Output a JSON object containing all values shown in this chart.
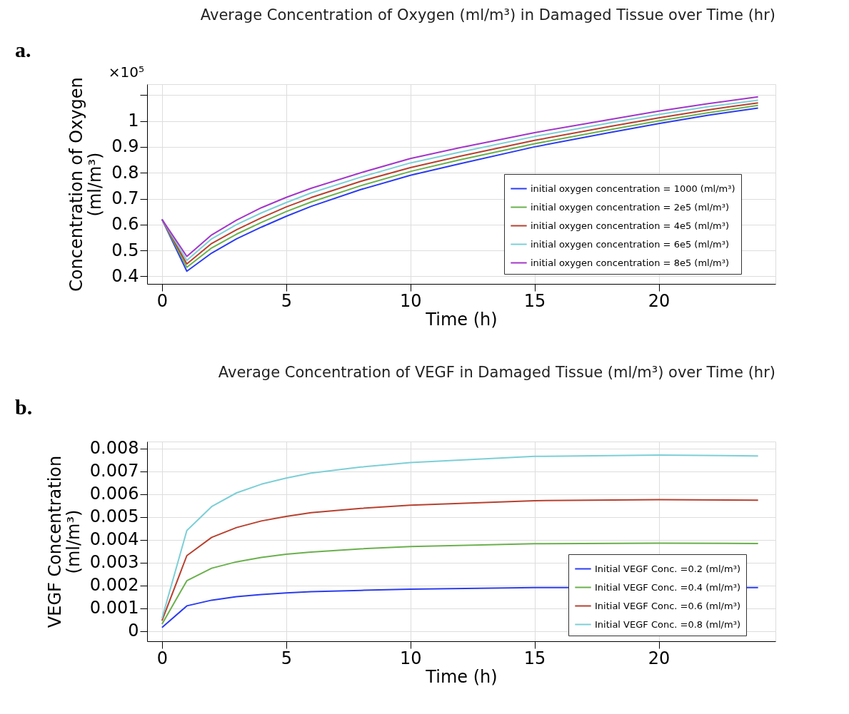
{
  "chart_data": [
    {
      "type": "line",
      "title": "Average Concentration of Oxygen (ml/m³) in Damaged Tissue over Time (hr)",
      "xlabel": "Time (h)",
      "ylabel": "Concentration of Oxygen\n(ml/m³)",
      "annotations": [
        "a.",
        "×10⁵"
      ],
      "x": [
        0,
        1,
        2,
        3,
        4,
        5,
        6,
        8,
        10,
        12,
        15,
        18,
        20,
        22,
        24
      ],
      "xlim": [
        -0.6,
        24.7
      ],
      "xticks": [
        0,
        5,
        10,
        15,
        20
      ],
      "ylim": [
        0.371,
        1.142
      ],
      "yticks": [
        0.4,
        0.5,
        0.6,
        0.7,
        0.8,
        0.9,
        1,
        {
          "value": 1.1,
          "label": null
        }
      ],
      "grid": true,
      "legend": "right",
      "series": [
        {
          "name": "initial oxygen concentration = 1000 (ml/m³)",
          "color": "#2b3cf0",
          "values": [
            0.62,
            0.42,
            0.49,
            0.545,
            0.59,
            0.632,
            0.67,
            0.735,
            0.79,
            0.835,
            0.9,
            0.955,
            0.99,
            1.022,
            1.05
          ]
        },
        {
          "name": "initial oxygen concentration = 2e5 (ml/m³)",
          "color": "#6ab04c",
          "values": [
            0.62,
            0.435,
            0.51,
            0.563,
            0.608,
            0.65,
            0.687,
            0.75,
            0.805,
            0.85,
            0.912,
            0.966,
            1.0,
            1.032,
            1.06
          ]
        },
        {
          "name": "initial oxygen concentration = 4e5 (ml/m³)",
          "color": "#b8402f",
          "values": [
            0.62,
            0.448,
            0.527,
            0.58,
            0.626,
            0.668,
            0.704,
            0.767,
            0.82,
            0.864,
            0.925,
            0.978,
            1.012,
            1.043,
            1.07
          ]
        },
        {
          "name": "initial oxygen concentration = 6e5 (ml/m³)",
          "color": "#7ccfd6",
          "values": [
            0.62,
            0.462,
            0.545,
            0.6,
            0.645,
            0.685,
            0.722,
            0.783,
            0.838,
            0.88,
            0.94,
            0.992,
            1.025,
            1.055,
            1.08
          ]
        },
        {
          "name": "initial oxygen concentration = 8e5 (ml/m³)",
          "color": "#a336c9",
          "values": [
            0.62,
            0.477,
            0.56,
            0.617,
            0.665,
            0.705,
            0.74,
            0.8,
            0.855,
            0.897,
            0.955,
            1.005,
            1.038,
            1.067,
            1.093
          ]
        }
      ]
    },
    {
      "type": "line",
      "title": "Average Concentration of VEGF in Damaged Tissue (ml/m³) over Time (hr)",
      "xlabel": "Time (h)",
      "ylabel": "VEGF Concentration\n(ml/m³)",
      "annotations": [
        "b."
      ],
      "x": [
        0,
        1,
        2,
        3,
        4,
        5,
        6,
        8,
        10,
        15,
        20,
        24
      ],
      "xlim": [
        -0.6,
        24.7
      ],
      "xticks": [
        0,
        5,
        10,
        15,
        20
      ],
      "ylim": [
        -0.00045,
        0.0083
      ],
      "yticks": [
        0,
        0.001,
        0.002,
        0.003,
        0.004,
        0.005,
        0.006,
        0.007,
        0.008
      ],
      "grid": true,
      "legend": "bottom right",
      "series": [
        {
          "name": "Initial VEGF Conc. =0.2 (ml/m³)",
          "color": "#2b3cf0",
          "values": [
            0.00015,
            0.0011,
            0.00135,
            0.0015,
            0.0016,
            0.00167,
            0.00172,
            0.00178,
            0.00183,
            0.0019,
            null,
            0.0019
          ]
        },
        {
          "name": "Initial VEGF Conc. =0.4 (ml/m³)",
          "color": "#6ab04c",
          "values": [
            0.0003,
            0.0022,
            0.00275,
            0.00303,
            0.00322,
            0.00336,
            0.00346,
            0.0036,
            0.0037,
            0.00382,
            0.00385,
            0.00383
          ]
        },
        {
          "name": "Initial VEGF Conc. =0.6 (ml/m³)",
          "color": "#b8402f",
          "values": [
            0.00045,
            0.0033,
            0.0041,
            0.00453,
            0.00482,
            0.00502,
            0.00518,
            0.00537,
            0.00551,
            0.00571,
            0.00575,
            0.00573
          ]
        },
        {
          "name": "Initial VEGF Conc. =0.8 (ml/m³)",
          "color": "#7ccfd6",
          "values": [
            0.00055,
            0.0044,
            0.00545,
            0.00605,
            0.00643,
            0.0067,
            0.00692,
            0.00718,
            0.00738,
            0.00765,
            0.00771,
            0.00767
          ]
        }
      ]
    }
  ]
}
